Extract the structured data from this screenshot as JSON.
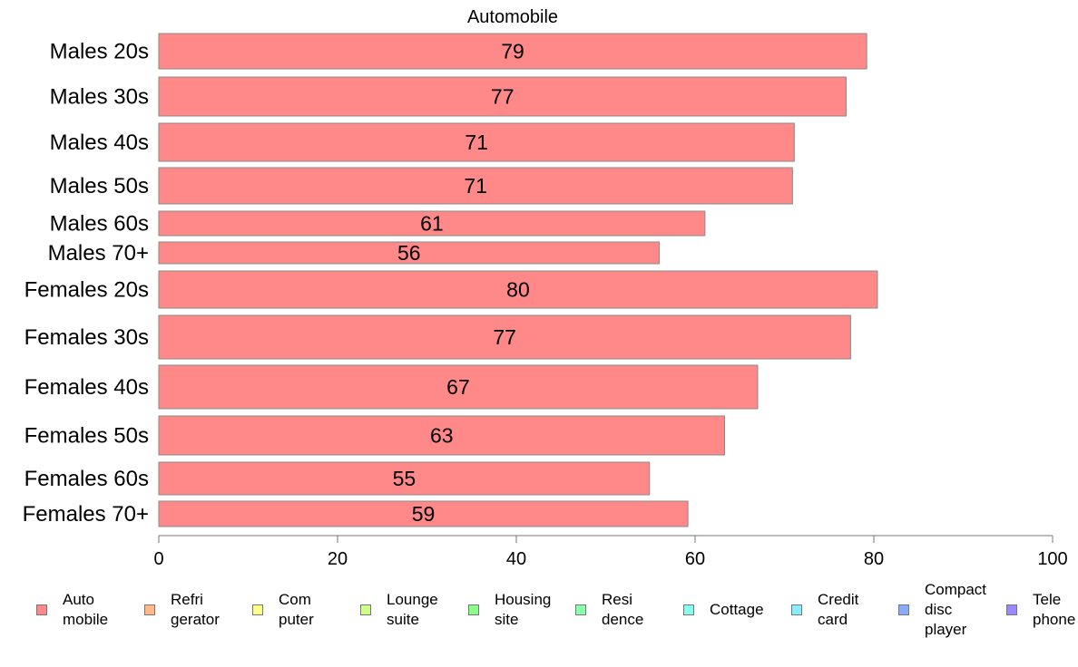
{
  "chart_data": {
    "type": "bar",
    "orientation": "horizontal",
    "title": "Automobile",
    "categories": [
      "Males 20s",
      "Males 30s",
      "Males 40s",
      "Males 50s",
      "Males 60s",
      "Males 70+",
      "Females 20s",
      "Females 30s",
      "Females 40s",
      "Females 50s",
      "Females 60s",
      "Females 70+"
    ],
    "values": [
      79.2,
      76.9,
      71.1,
      70.9,
      61.1,
      56.0,
      80.4,
      77.4,
      67.0,
      63.3,
      54.9,
      59.2
    ],
    "data_labels": [
      "79",
      "77",
      "71",
      "71",
      "61",
      "56",
      "80",
      "77",
      "67",
      "63",
      "55",
      "59"
    ],
    "xlim": [
      0,
      100
    ],
    "xticks": [
      "0",
      "20",
      "40",
      "60",
      "80",
      "100"
    ],
    "xlabel": "",
    "ylabel": "",
    "bar_color": "#ff8888",
    "grid": false,
    "legend_position": "bottom",
    "legend": [
      {
        "label": "Auto\nmobile",
        "color": "#ff8888"
      },
      {
        "label": "Refri\ngerator",
        "color": "#ffb888"
      },
      {
        "label": "Com\nputer",
        "color": "#ffff88"
      },
      {
        "label": "Lounge\nsuite",
        "color": "#ccff88"
      },
      {
        "label": "Housing\nsite",
        "color": "#88ff88"
      },
      {
        "label": "Resi\ndence",
        "color": "#88ffaa"
      },
      {
        "label": "Cottage",
        "color": "#88ffee"
      },
      {
        "label": "Credit\ncard",
        "color": "#88eeff"
      },
      {
        "label": "Compact\ndisc\nplayer",
        "color": "#88aaff"
      },
      {
        "label": "Tele\nphone",
        "color": "#9988ff"
      }
    ]
  }
}
